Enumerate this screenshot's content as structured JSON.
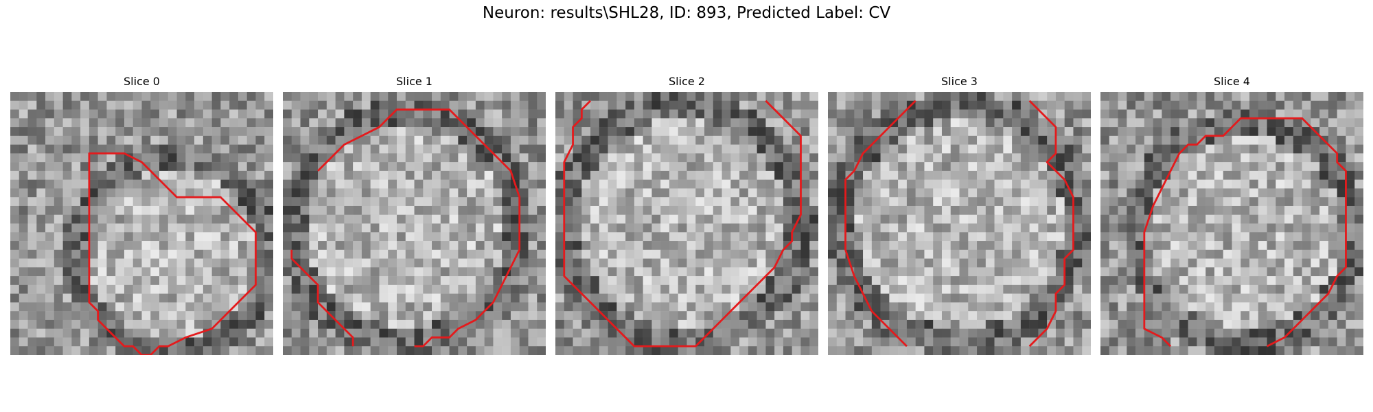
{
  "figure": {
    "title": "Neuron: results\\SHL28, ID: 893, Predicted Label: CV",
    "contour_color": "#e41a1c",
    "image_colormap": "grayscale",
    "grid_size": 30
  },
  "slices": [
    {
      "title": "Slice 0",
      "seed": 11,
      "contour": [
        [
          9,
          7
        ],
        [
          13,
          7
        ],
        [
          15,
          8
        ],
        [
          16,
          9
        ],
        [
          17,
          10
        ],
        [
          18,
          11
        ],
        [
          19,
          12
        ],
        [
          24,
          12
        ],
        [
          25,
          13
        ],
        [
          26,
          14
        ],
        [
          27,
          15
        ],
        [
          28,
          16
        ],
        [
          28,
          22
        ],
        [
          27,
          23
        ],
        [
          26,
          24
        ],
        [
          25,
          25
        ],
        [
          24,
          26
        ],
        [
          23,
          27
        ],
        [
          20,
          28
        ],
        [
          18,
          29
        ],
        [
          17,
          29
        ],
        [
          16,
          30
        ],
        [
          15,
          30
        ],
        [
          14,
          29
        ],
        [
          13,
          29
        ],
        [
          12,
          28
        ],
        [
          11,
          27
        ],
        [
          10,
          26
        ],
        [
          10,
          25
        ],
        [
          9,
          24
        ],
        [
          9,
          20
        ],
        [
          9,
          9
        ]
      ],
      "closed": true
    },
    {
      "title": "Slice 1",
      "seed": 23,
      "contour": [
        [
          4,
          9
        ],
        [
          5,
          8
        ],
        [
          7,
          6
        ],
        [
          9,
          5
        ],
        [
          11,
          4
        ],
        [
          12,
          3
        ],
        [
          13,
          2
        ],
        [
          19,
          2
        ],
        [
          20,
          3
        ],
        [
          21,
          4
        ],
        [
          22,
          5
        ],
        [
          23,
          6
        ],
        [
          24,
          7
        ],
        [
          25,
          8
        ],
        [
          26,
          9
        ],
        [
          27,
          12
        ],
        [
          27,
          16
        ],
        [
          27,
          18
        ],
        [
          26,
          20
        ],
        [
          25,
          22
        ],
        [
          24,
          24
        ],
        [
          22,
          26
        ],
        [
          20,
          27
        ],
        [
          19,
          28
        ],
        [
          17,
          28
        ],
        [
          16,
          29
        ],
        [
          15,
          29
        ]
      ],
      "closed": false,
      "extra": [
        [
          [
            1,
            18
          ],
          [
            1,
            19
          ],
          [
            2,
            20
          ],
          [
            3,
            21
          ],
          [
            4,
            22
          ],
          [
            4,
            24
          ],
          [
            5,
            25
          ],
          [
            6,
            26
          ],
          [
            7,
            27
          ],
          [
            8,
            28
          ],
          [
            8,
            29
          ]
        ]
      ]
    },
    {
      "title": "Slice 2",
      "seed": 37,
      "contour": [
        [
          4,
          1
        ],
        [
          3,
          2
        ],
        [
          3,
          3
        ],
        [
          2,
          4
        ],
        [
          2,
          6
        ],
        [
          1,
          8
        ],
        [
          1,
          21
        ],
        [
          2,
          22
        ],
        [
          3,
          23
        ],
        [
          4,
          24
        ],
        [
          5,
          25
        ],
        [
          6,
          26
        ],
        [
          7,
          27
        ],
        [
          8,
          28
        ],
        [
          9,
          29
        ],
        [
          16,
          29
        ],
        [
          17,
          28
        ],
        [
          18,
          27
        ],
        [
          19,
          26
        ],
        [
          20,
          25
        ],
        [
          21,
          24
        ],
        [
          22,
          23
        ],
        [
          23,
          22
        ],
        [
          24,
          21
        ],
        [
          25,
          20
        ],
        [
          26,
          18
        ],
        [
          27,
          17
        ],
        [
          27,
          16
        ],
        [
          28,
          14
        ],
        [
          28,
          5
        ],
        [
          27,
          4
        ],
        [
          26,
          3
        ],
        [
          25,
          2
        ],
        [
          24,
          1
        ]
      ],
      "closed": false,
      "extra": []
    },
    {
      "title": "Slice 3",
      "seed": 51,
      "contour": [
        [
          10,
          1
        ],
        [
          9,
          2
        ],
        [
          8,
          3
        ],
        [
          7,
          4
        ],
        [
          6,
          5
        ],
        [
          5,
          6
        ],
        [
          4,
          7
        ],
        [
          3,
          9
        ],
        [
          2,
          10
        ],
        [
          2,
          18
        ],
        [
          3,
          21
        ],
        [
          4,
          23
        ],
        [
          5,
          25
        ],
        [
          6,
          26
        ],
        [
          7,
          27
        ],
        [
          8,
          28
        ],
        [
          9,
          29
        ]
      ],
      "closed": false,
      "extra": [
        [
          [
            23,
            1
          ],
          [
            24,
            2
          ],
          [
            25,
            3
          ],
          [
            26,
            4
          ],
          [
            26,
            6
          ],
          [
            26,
            7
          ],
          [
            25,
            8
          ],
          [
            26,
            9
          ],
          [
            27,
            10
          ],
          [
            28,
            12
          ],
          [
            28,
            18
          ],
          [
            27,
            19
          ],
          [
            27,
            22
          ],
          [
            26,
            23
          ],
          [
            26,
            25
          ],
          [
            25,
            27
          ],
          [
            24,
            28
          ],
          [
            23,
            29
          ]
        ]
      ]
    },
    {
      "title": "Slice 4",
      "seed": 67,
      "contour": [
        [
          8,
          29
        ],
        [
          7,
          28
        ],
        [
          5,
          27
        ],
        [
          5,
          16
        ],
        [
          6,
          13
        ],
        [
          7,
          11
        ],
        [
          8,
          9
        ],
        [
          9,
          7
        ],
        [
          10,
          6
        ],
        [
          11,
          6
        ],
        [
          12,
          5
        ],
        [
          14,
          5
        ],
        [
          15,
          4
        ],
        [
          16,
          3
        ],
        [
          23,
          3
        ],
        [
          24,
          4
        ],
        [
          25,
          5
        ],
        [
          26,
          6
        ],
        [
          27,
          7
        ],
        [
          27,
          8
        ],
        [
          28,
          9
        ],
        [
          28,
          20
        ],
        [
          27,
          21
        ],
        [
          26,
          23
        ],
        [
          25,
          24
        ],
        [
          24,
          25
        ],
        [
          23,
          26
        ],
        [
          22,
          27
        ],
        [
          21,
          28
        ],
        [
          19,
          29
        ]
      ],
      "closed": false,
      "extra": []
    }
  ]
}
